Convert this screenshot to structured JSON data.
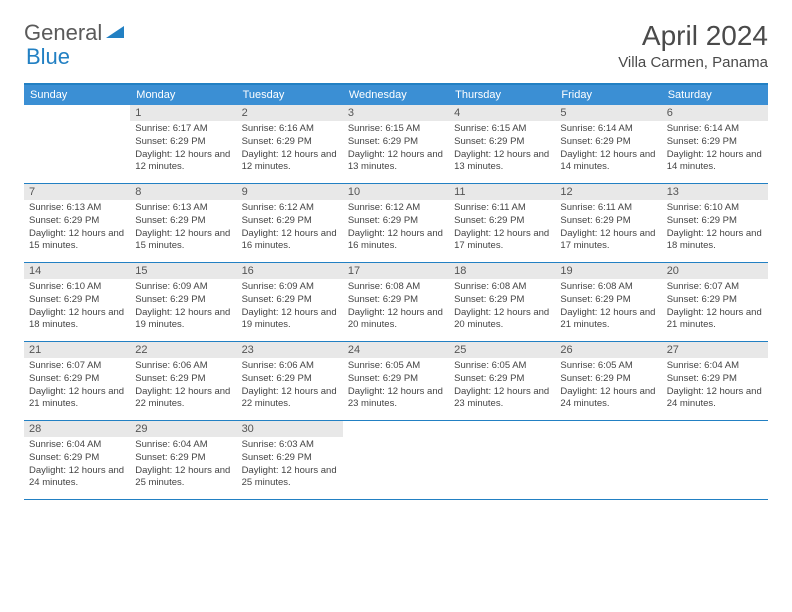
{
  "logo": {
    "text1": "General",
    "text2": "Blue"
  },
  "title": "April 2024",
  "location": "Villa Carmen, Panama",
  "colors": {
    "header_bg": "#3b8fd4",
    "border": "#2280c3",
    "daynum_bg": "#e8e8e8",
    "text": "#444444"
  },
  "dayNames": [
    "Sunday",
    "Monday",
    "Tuesday",
    "Wednesday",
    "Thursday",
    "Friday",
    "Saturday"
  ],
  "weeks": [
    [
      {
        "n": "",
        "empty": true
      },
      {
        "n": "1",
        "sr": "Sunrise: 6:17 AM",
        "ss": "Sunset: 6:29 PM",
        "dl": "Daylight: 12 hours and 12 minutes."
      },
      {
        "n": "2",
        "sr": "Sunrise: 6:16 AM",
        "ss": "Sunset: 6:29 PM",
        "dl": "Daylight: 12 hours and 12 minutes."
      },
      {
        "n": "3",
        "sr": "Sunrise: 6:15 AM",
        "ss": "Sunset: 6:29 PM",
        "dl": "Daylight: 12 hours and 13 minutes."
      },
      {
        "n": "4",
        "sr": "Sunrise: 6:15 AM",
        "ss": "Sunset: 6:29 PM",
        "dl": "Daylight: 12 hours and 13 minutes."
      },
      {
        "n": "5",
        "sr": "Sunrise: 6:14 AM",
        "ss": "Sunset: 6:29 PM",
        "dl": "Daylight: 12 hours and 14 minutes."
      },
      {
        "n": "6",
        "sr": "Sunrise: 6:14 AM",
        "ss": "Sunset: 6:29 PM",
        "dl": "Daylight: 12 hours and 14 minutes."
      }
    ],
    [
      {
        "n": "7",
        "sr": "Sunrise: 6:13 AM",
        "ss": "Sunset: 6:29 PM",
        "dl": "Daylight: 12 hours and 15 minutes."
      },
      {
        "n": "8",
        "sr": "Sunrise: 6:13 AM",
        "ss": "Sunset: 6:29 PM",
        "dl": "Daylight: 12 hours and 15 minutes."
      },
      {
        "n": "9",
        "sr": "Sunrise: 6:12 AM",
        "ss": "Sunset: 6:29 PM",
        "dl": "Daylight: 12 hours and 16 minutes."
      },
      {
        "n": "10",
        "sr": "Sunrise: 6:12 AM",
        "ss": "Sunset: 6:29 PM",
        "dl": "Daylight: 12 hours and 16 minutes."
      },
      {
        "n": "11",
        "sr": "Sunrise: 6:11 AM",
        "ss": "Sunset: 6:29 PM",
        "dl": "Daylight: 12 hours and 17 minutes."
      },
      {
        "n": "12",
        "sr": "Sunrise: 6:11 AM",
        "ss": "Sunset: 6:29 PM",
        "dl": "Daylight: 12 hours and 17 minutes."
      },
      {
        "n": "13",
        "sr": "Sunrise: 6:10 AM",
        "ss": "Sunset: 6:29 PM",
        "dl": "Daylight: 12 hours and 18 minutes."
      }
    ],
    [
      {
        "n": "14",
        "sr": "Sunrise: 6:10 AM",
        "ss": "Sunset: 6:29 PM",
        "dl": "Daylight: 12 hours and 18 minutes."
      },
      {
        "n": "15",
        "sr": "Sunrise: 6:09 AM",
        "ss": "Sunset: 6:29 PM",
        "dl": "Daylight: 12 hours and 19 minutes."
      },
      {
        "n": "16",
        "sr": "Sunrise: 6:09 AM",
        "ss": "Sunset: 6:29 PM",
        "dl": "Daylight: 12 hours and 19 minutes."
      },
      {
        "n": "17",
        "sr": "Sunrise: 6:08 AM",
        "ss": "Sunset: 6:29 PM",
        "dl": "Daylight: 12 hours and 20 minutes."
      },
      {
        "n": "18",
        "sr": "Sunrise: 6:08 AM",
        "ss": "Sunset: 6:29 PM",
        "dl": "Daylight: 12 hours and 20 minutes."
      },
      {
        "n": "19",
        "sr": "Sunrise: 6:08 AM",
        "ss": "Sunset: 6:29 PM",
        "dl": "Daylight: 12 hours and 21 minutes."
      },
      {
        "n": "20",
        "sr": "Sunrise: 6:07 AM",
        "ss": "Sunset: 6:29 PM",
        "dl": "Daylight: 12 hours and 21 minutes."
      }
    ],
    [
      {
        "n": "21",
        "sr": "Sunrise: 6:07 AM",
        "ss": "Sunset: 6:29 PM",
        "dl": "Daylight: 12 hours and 21 minutes."
      },
      {
        "n": "22",
        "sr": "Sunrise: 6:06 AM",
        "ss": "Sunset: 6:29 PM",
        "dl": "Daylight: 12 hours and 22 minutes."
      },
      {
        "n": "23",
        "sr": "Sunrise: 6:06 AM",
        "ss": "Sunset: 6:29 PM",
        "dl": "Daylight: 12 hours and 22 minutes."
      },
      {
        "n": "24",
        "sr": "Sunrise: 6:05 AM",
        "ss": "Sunset: 6:29 PM",
        "dl": "Daylight: 12 hours and 23 minutes."
      },
      {
        "n": "25",
        "sr": "Sunrise: 6:05 AM",
        "ss": "Sunset: 6:29 PM",
        "dl": "Daylight: 12 hours and 23 minutes."
      },
      {
        "n": "26",
        "sr": "Sunrise: 6:05 AM",
        "ss": "Sunset: 6:29 PM",
        "dl": "Daylight: 12 hours and 24 minutes."
      },
      {
        "n": "27",
        "sr": "Sunrise: 6:04 AM",
        "ss": "Sunset: 6:29 PM",
        "dl": "Daylight: 12 hours and 24 minutes."
      }
    ],
    [
      {
        "n": "28",
        "sr": "Sunrise: 6:04 AM",
        "ss": "Sunset: 6:29 PM",
        "dl": "Daylight: 12 hours and 24 minutes."
      },
      {
        "n": "29",
        "sr": "Sunrise: 6:04 AM",
        "ss": "Sunset: 6:29 PM",
        "dl": "Daylight: 12 hours and 25 minutes."
      },
      {
        "n": "30",
        "sr": "Sunrise: 6:03 AM",
        "ss": "Sunset: 6:29 PM",
        "dl": "Daylight: 12 hours and 25 minutes."
      },
      {
        "n": "",
        "empty": true
      },
      {
        "n": "",
        "empty": true
      },
      {
        "n": "",
        "empty": true
      },
      {
        "n": "",
        "empty": true
      }
    ]
  ]
}
